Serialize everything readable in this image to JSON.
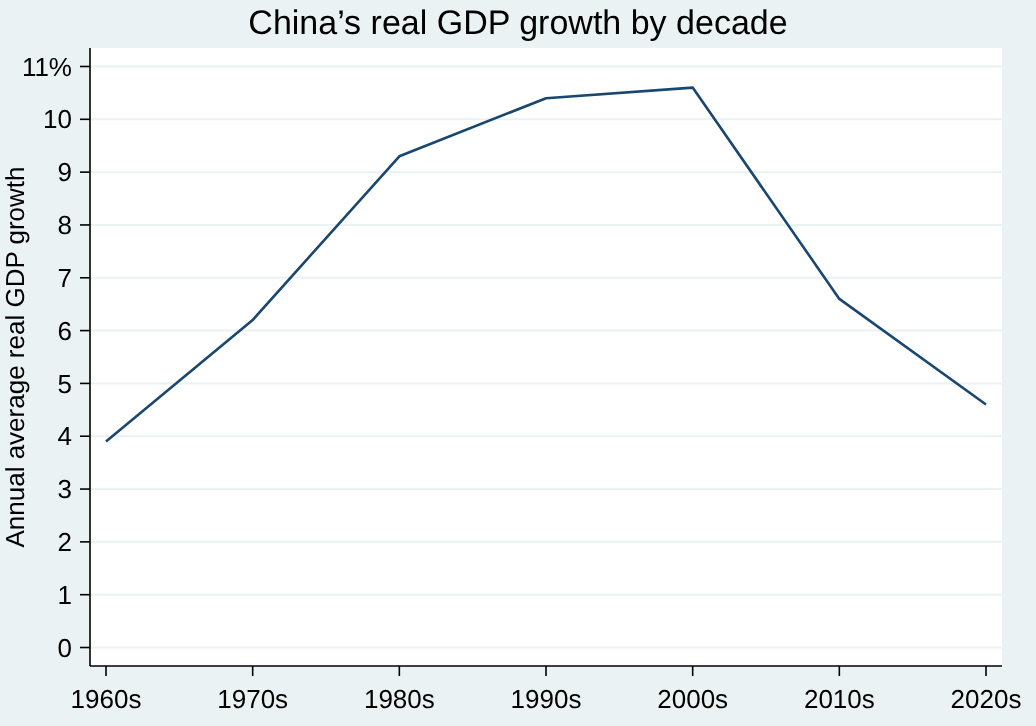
{
  "chart_data": {
    "type": "line",
    "title": "China’s real GDP growth by decade",
    "ylabel": "Annual average real GDP growth",
    "categories": [
      "1960s",
      "1970s",
      "1980s",
      "1990s",
      "2000s",
      "2010s",
      "2020s"
    ],
    "series": [
      {
        "color": "#1a476f",
        "values": [
          3.9,
          6.2,
          9.3,
          10.4,
          10.6,
          6.6,
          4.6
        ]
      }
    ],
    "ylim": [
      -0.35,
      11.35
    ],
    "yticks": [
      0,
      1,
      2,
      3,
      4,
      5,
      6,
      7,
      8,
      9,
      10,
      {
        "value": 11,
        "label": "11%"
      }
    ],
    "grid": "y",
    "marker": "none",
    "line_style": "solid"
  }
}
